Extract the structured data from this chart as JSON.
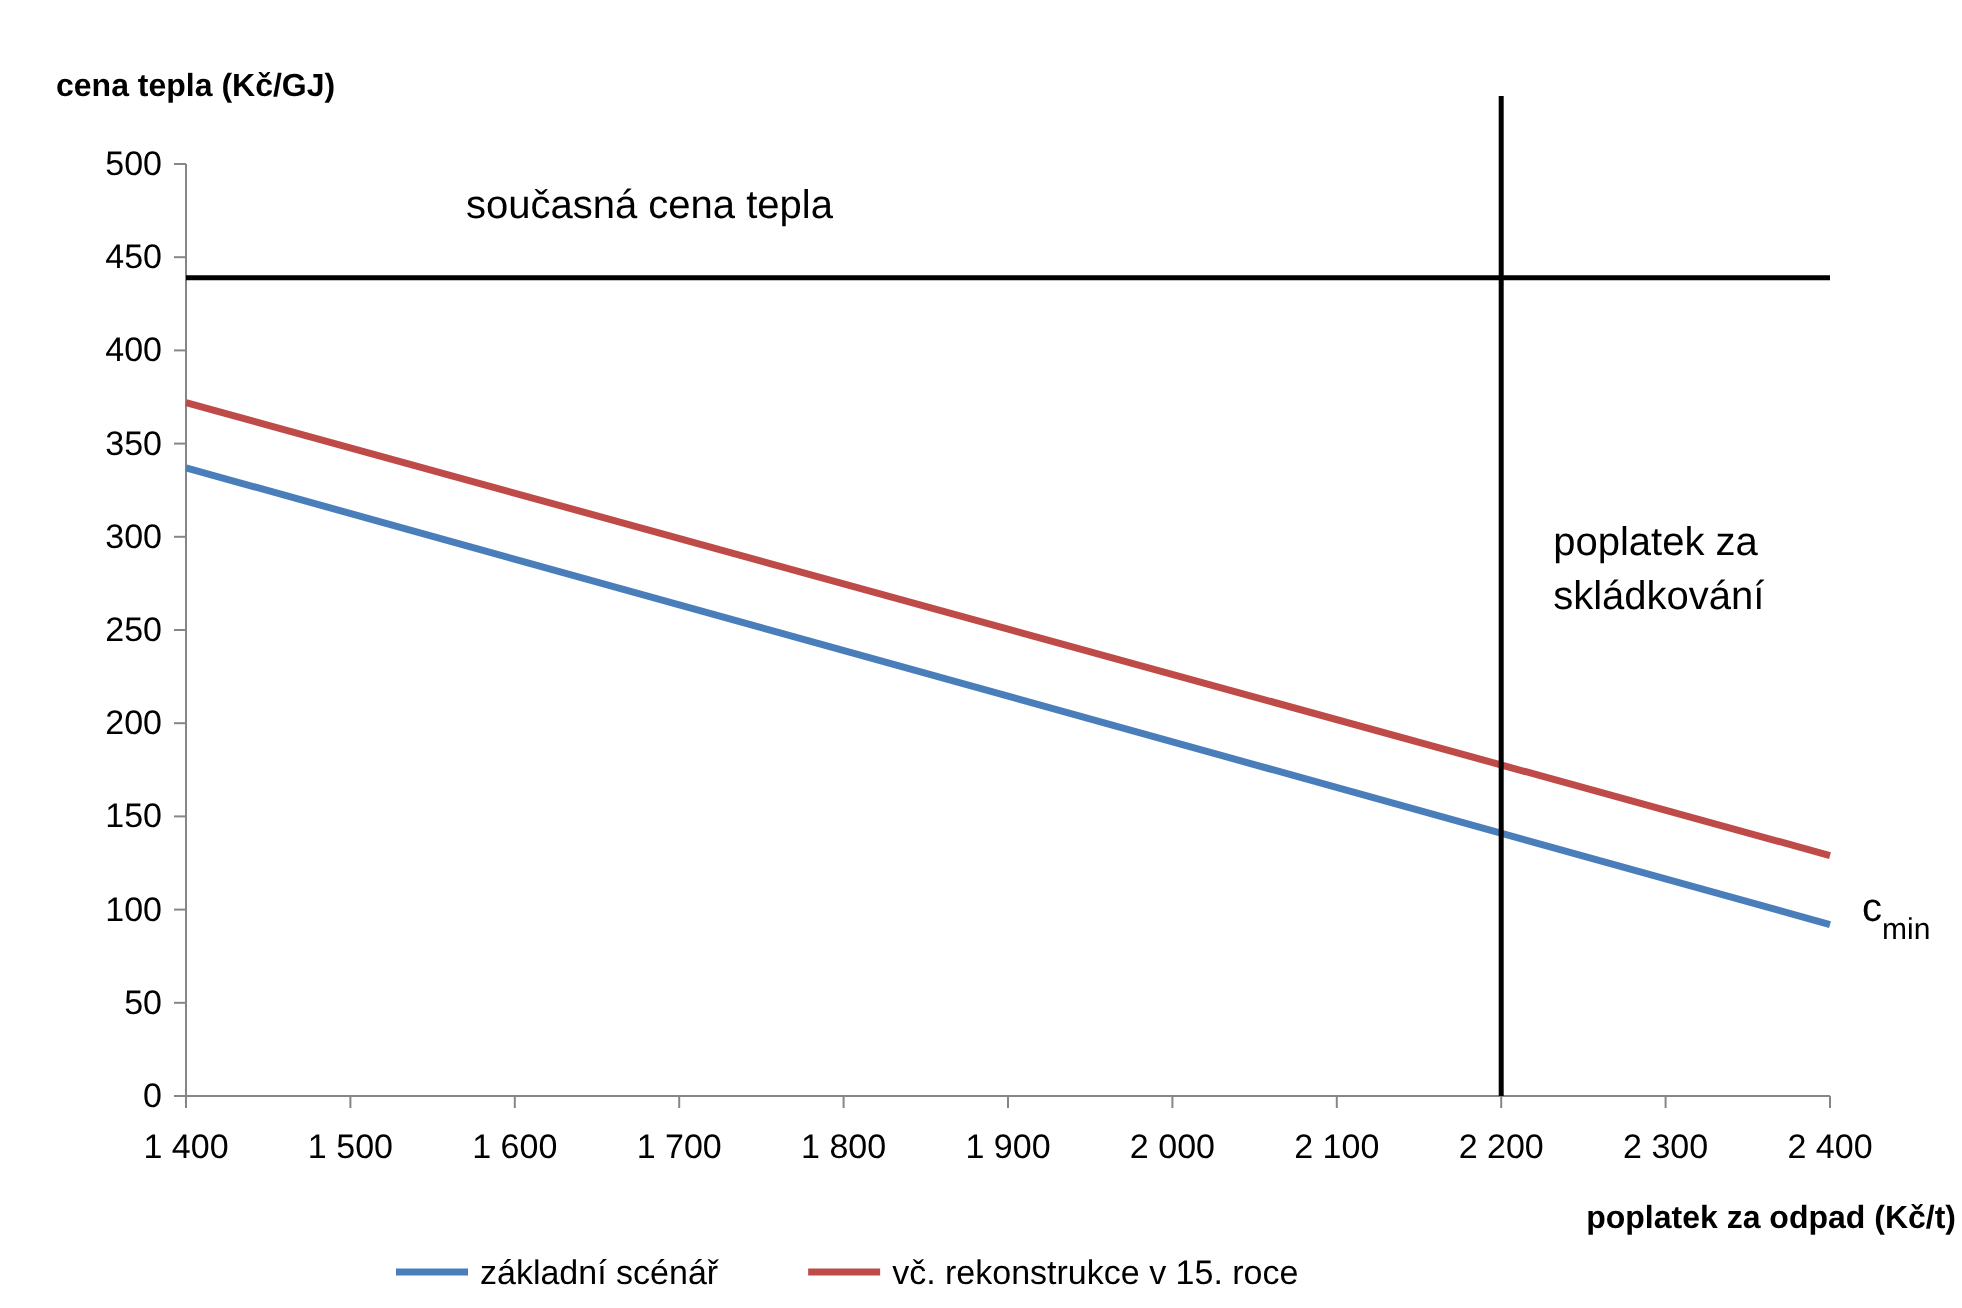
{
  "chart_data": {
    "type": "line",
    "xlabel": "poplatek za odpad (Kč/t)",
    "ylabel": "cena tepla (Kč/GJ)",
    "x": [
      1400,
      2400
    ],
    "series": [
      {
        "name": "základní scénář",
        "color": "#4a7ebb",
        "values": [
          337,
          92
        ]
      },
      {
        "name": "vč. rekonstrukce v 15. roce",
        "color": "#be4b48",
        "values": [
          372,
          129
        ]
      }
    ],
    "xlim": [
      1400,
      2400
    ],
    "xticks": [
      {
        "value": 1400,
        "label": "1 400"
      },
      {
        "value": 1500,
        "label": "1 500"
      },
      {
        "value": 1600,
        "label": "1 600"
      },
      {
        "value": 1700,
        "label": "1 700"
      },
      {
        "value": 1800,
        "label": "1 800"
      },
      {
        "value": 1900,
        "label": "1 900"
      },
      {
        "value": 2000,
        "label": "2 000"
      },
      {
        "value": 2100,
        "label": "2 100"
      },
      {
        "value": 2200,
        "label": "2 200"
      },
      {
        "value": 2300,
        "label": "2 300"
      },
      {
        "value": 2400,
        "label": "2 400"
      }
    ],
    "ylim": [
      0,
      500
    ],
    "yticks": [
      0,
      50,
      100,
      150,
      200,
      250,
      300,
      350,
      400,
      450,
      500
    ],
    "ref_lines": [
      {
        "axis": "y",
        "value": 439,
        "label": "současná cena tepla",
        "color": "#000000"
      },
      {
        "axis": "x",
        "value": 2200,
        "label": "poplatek za\nskládkování",
        "color": "#000000"
      }
    ],
    "annotations": [
      {
        "text": "c$_{min}$",
        "x": 2400,
        "y": 92
      }
    ],
    "legend": "bottom",
    "grid": false,
    "marker": "none",
    "line_style": "solid"
  }
}
